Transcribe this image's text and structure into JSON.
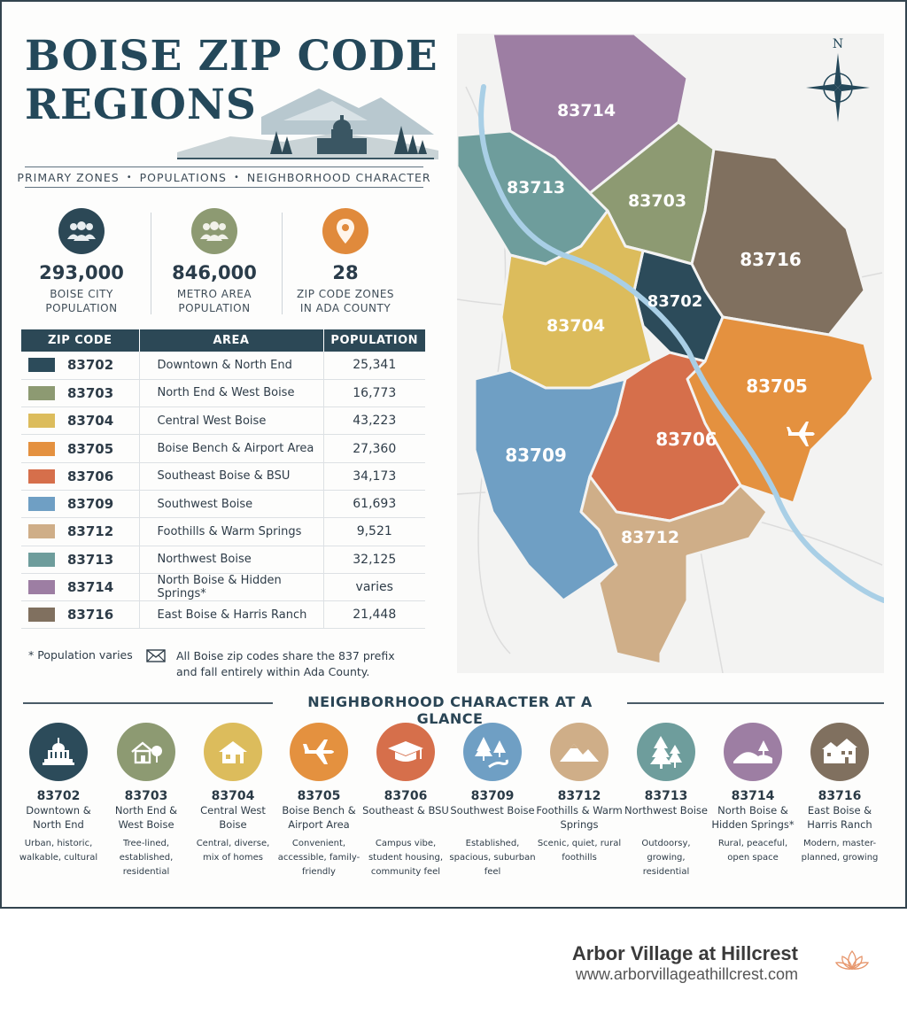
{
  "title": "BOISE ZIP CODE REGIONS",
  "subtitle": [
    "PRIMARY ZONES",
    "POPULATIONS",
    "NEIGHBORHOOD CHARACTER"
  ],
  "stats": [
    {
      "value": "293,000",
      "label1": "BOISE CITY",
      "label2": "POPULATION",
      "icon": "people-icon",
      "color": "#2c4856"
    },
    {
      "value": "846,000",
      "label1": "METRO AREA",
      "label2": "POPULATION",
      "icon": "people-icon",
      "color": "#8d9a72"
    },
    {
      "value": "28",
      "label1": "ZIP CODE ZONES",
      "label2": "IN ADA COUNTY",
      "icon": "location-pin-icon",
      "color": "#e08a3c"
    }
  ],
  "table": {
    "headers": [
      "ZIP CODE",
      "AREA",
      "POPULATION"
    ],
    "rows": [
      {
        "zip": "83702",
        "area": "Downtown & North End",
        "population": "25,341",
        "color": "#2c4b5a"
      },
      {
        "zip": "83703",
        "area": "North End & West Boise",
        "population": "16,773",
        "color": "#8d9a72"
      },
      {
        "zip": "83704",
        "area": "Central West Boise",
        "population": "43,223",
        "color": "#dcbc5c"
      },
      {
        "zip": "83705",
        "area": "Boise Bench & Airport Area",
        "population": "27,360",
        "color": "#e4913f"
      },
      {
        "zip": "83706",
        "area": "Southeast Boise & BSU",
        "population": "34,173",
        "color": "#d66f4b"
      },
      {
        "zip": "83709",
        "area": "Southwest Boise",
        "population": "61,693",
        "color": "#6f9fc4"
      },
      {
        "zip": "83712",
        "area": "Foothills & Warm Springs",
        "population": "9,521",
        "color": "#cfae88"
      },
      {
        "zip": "83713",
        "area": "Northwest Boise",
        "population": "32,125",
        "color": "#6e9d9c"
      },
      {
        "zip": "83714",
        "area": "North Boise & Hidden Springs*",
        "population": "varies",
        "color": "#9d7ea3"
      },
      {
        "zip": "83716",
        "area": "East Boise & Harris Ranch",
        "population": "21,448",
        "color": "#80705f"
      }
    ]
  },
  "notes": {
    "footnote": "*  Population varies",
    "prefix_note": "All Boise zip codes share the 837 prefix and fall entirely within Ada County."
  },
  "map": {
    "compass_label": "N",
    "regions": [
      {
        "zip": "83714",
        "color": "#9d7ea3"
      },
      {
        "zip": "83713",
        "color": "#6e9d9c"
      },
      {
        "zip": "83703",
        "color": "#8d9a72"
      },
      {
        "zip": "83716",
        "color": "#80705f"
      },
      {
        "zip": "83702",
        "color": "#2c4b5a"
      },
      {
        "zip": "83704",
        "color": "#dcbc5c"
      },
      {
        "zip": "83705",
        "color": "#e4913f"
      },
      {
        "zip": "83706",
        "color": "#d66f4b"
      },
      {
        "zip": "83709",
        "color": "#6f9fc4"
      },
      {
        "zip": "83712",
        "color": "#cfae88"
      }
    ]
  },
  "character": {
    "title": "NEIGHBORHOOD CHARACTER AT A GLANCE",
    "items": [
      {
        "zip": "83702",
        "area": "Downtown & North End",
        "desc": "Urban, historic, walkable, cultural",
        "icon": "capitol-icon",
        "color": "#2c4b5a"
      },
      {
        "zip": "83703",
        "area": "North End & West Boise",
        "desc": "Tree-lined, established, residential",
        "icon": "house-tree-icon",
        "color": "#8d9a72"
      },
      {
        "zip": "83704",
        "area": "Central West Boise",
        "desc": "Central, diverse, mix of homes",
        "icon": "house-icon",
        "color": "#dcbc5c"
      },
      {
        "zip": "83705",
        "area": "Boise Bench & Airport Area",
        "desc": "Convenient, accessible, family-friendly",
        "icon": "airplane-icon",
        "color": "#e4913f"
      },
      {
        "zip": "83706",
        "area": "Southeast & BSU",
        "desc": "Campus vibe, student housing, community feel",
        "icon": "graduation-cap-icon",
        "color": "#d66f4b"
      },
      {
        "zip": "83709",
        "area": "Southwest Boise",
        "desc": "Established, spacious, suburban feel",
        "icon": "trees-road-icon",
        "color": "#6f9fc4"
      },
      {
        "zip": "83712",
        "area": "Foothills & Warm Springs",
        "desc": "Scenic, quiet, rural foothills",
        "icon": "mountains-icon",
        "color": "#cfae88"
      },
      {
        "zip": "83713",
        "area": "Northwest Boise",
        "desc": "Outdoorsy, growing, residential",
        "icon": "pine-trees-icon",
        "color": "#6e9d9c"
      },
      {
        "zip": "83714",
        "area": "North Boise & Hidden Springs*",
        "desc": "Rural, peaceful, open space",
        "icon": "hills-tree-icon",
        "color": "#9d7ea3"
      },
      {
        "zip": "83716",
        "area": "East Boise & Harris Ranch",
        "desc": "Modern, master-planned, growing",
        "icon": "townhomes-icon",
        "color": "#80705f"
      }
    ]
  },
  "footer": {
    "brand_name": "Arbor Village at Hillcrest",
    "brand_url": "www.arborvillageathillcrest.com"
  }
}
